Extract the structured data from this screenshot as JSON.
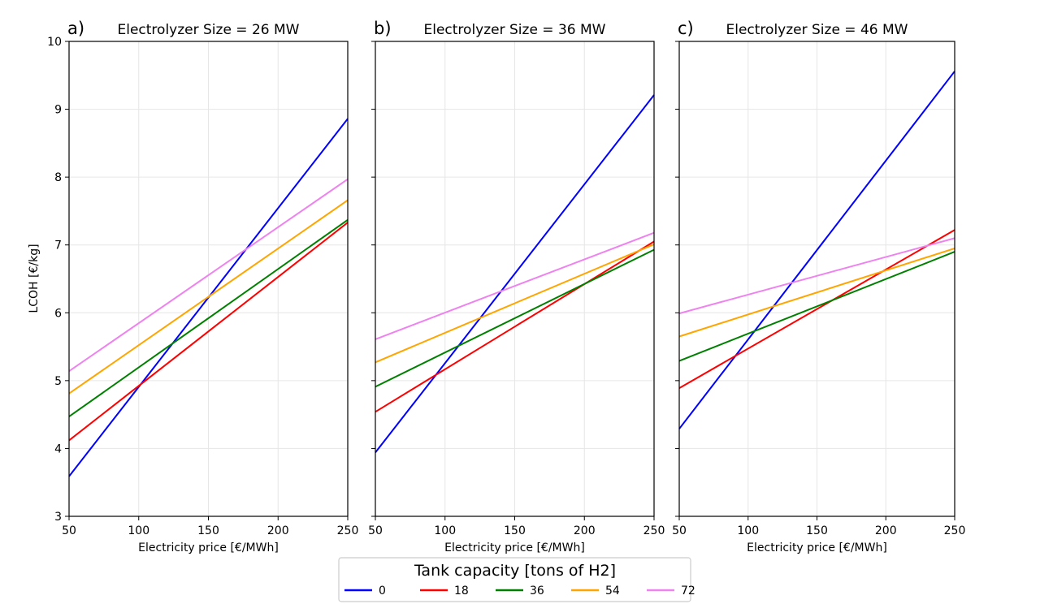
{
  "chart_data": {
    "type": "line",
    "y_label": "LCOH [€/kg]",
    "x_label": "Electricity price [€/MWh]",
    "x_ticks": [
      "50",
      "100",
      "150",
      "200",
      "250"
    ],
    "y_ticks": [
      "3",
      "4",
      "5",
      "6",
      "7",
      "8",
      "9",
      "10"
    ],
    "xlim": [
      50,
      250
    ],
    "ylim": [
      3,
      10
    ],
    "grid": true,
    "legend": {
      "title": "Tank capacity [tons of H2]",
      "placement": "bottom-center",
      "entries": [
        {
          "label": "0",
          "color": "#0000ff"
        },
        {
          "label": "18",
          "color": "#ff0000"
        },
        {
          "label": "36",
          "color": "#008000"
        },
        {
          "label": "54",
          "color": "#ffa500"
        },
        {
          "label": "72",
          "color": "#ee82ee"
        }
      ]
    },
    "panels": [
      {
        "letter": "a)",
        "title": "Electrolyzer Size = 26 MW",
        "series": [
          {
            "name": "0",
            "x": [
              50,
              250
            ],
            "y": [
              3.59,
              8.86
            ]
          },
          {
            "name": "18",
            "x": [
              50,
              250
            ],
            "y": [
              4.12,
              7.33
            ]
          },
          {
            "name": "36",
            "x": [
              50,
              250
            ],
            "y": [
              4.47,
              7.37
            ]
          },
          {
            "name": "54",
            "x": [
              50,
              250
            ],
            "y": [
              4.81,
              7.66
            ]
          },
          {
            "name": "72",
            "x": [
              50,
              250
            ],
            "y": [
              5.14,
              7.97
            ]
          }
        ]
      },
      {
        "letter": "b)",
        "title": "Electrolyzer Size = 36 MW",
        "series": [
          {
            "name": "0",
            "x": [
              50,
              250
            ],
            "y": [
              3.94,
              9.21
            ]
          },
          {
            "name": "18",
            "x": [
              50,
              250
            ],
            "y": [
              4.54,
              7.05
            ]
          },
          {
            "name": "36",
            "x": [
              50,
              250
            ],
            "y": [
              4.91,
              6.93
            ]
          },
          {
            "name": "54",
            "x": [
              50,
              250
            ],
            "y": [
              5.27,
              7.01
            ]
          },
          {
            "name": "72",
            "x": [
              50,
              250
            ],
            "y": [
              5.61,
              7.18
            ]
          }
        ]
      },
      {
        "letter": "c)",
        "title": "Electrolyzer Size = 46 MW",
        "series": [
          {
            "name": "0",
            "x": [
              50,
              250
            ],
            "y": [
              4.29,
              9.56
            ]
          },
          {
            "name": "18",
            "x": [
              50,
              250
            ],
            "y": [
              4.89,
              7.22
            ]
          },
          {
            "name": "36",
            "x": [
              50,
              250
            ],
            "y": [
              5.29,
              6.9
            ]
          },
          {
            "name": "54",
            "x": [
              50,
              250
            ],
            "y": [
              5.65,
              6.95
            ]
          },
          {
            "name": "72",
            "x": [
              50,
              250
            ],
            "y": [
              5.99,
              7.1
            ]
          }
        ]
      }
    ]
  }
}
